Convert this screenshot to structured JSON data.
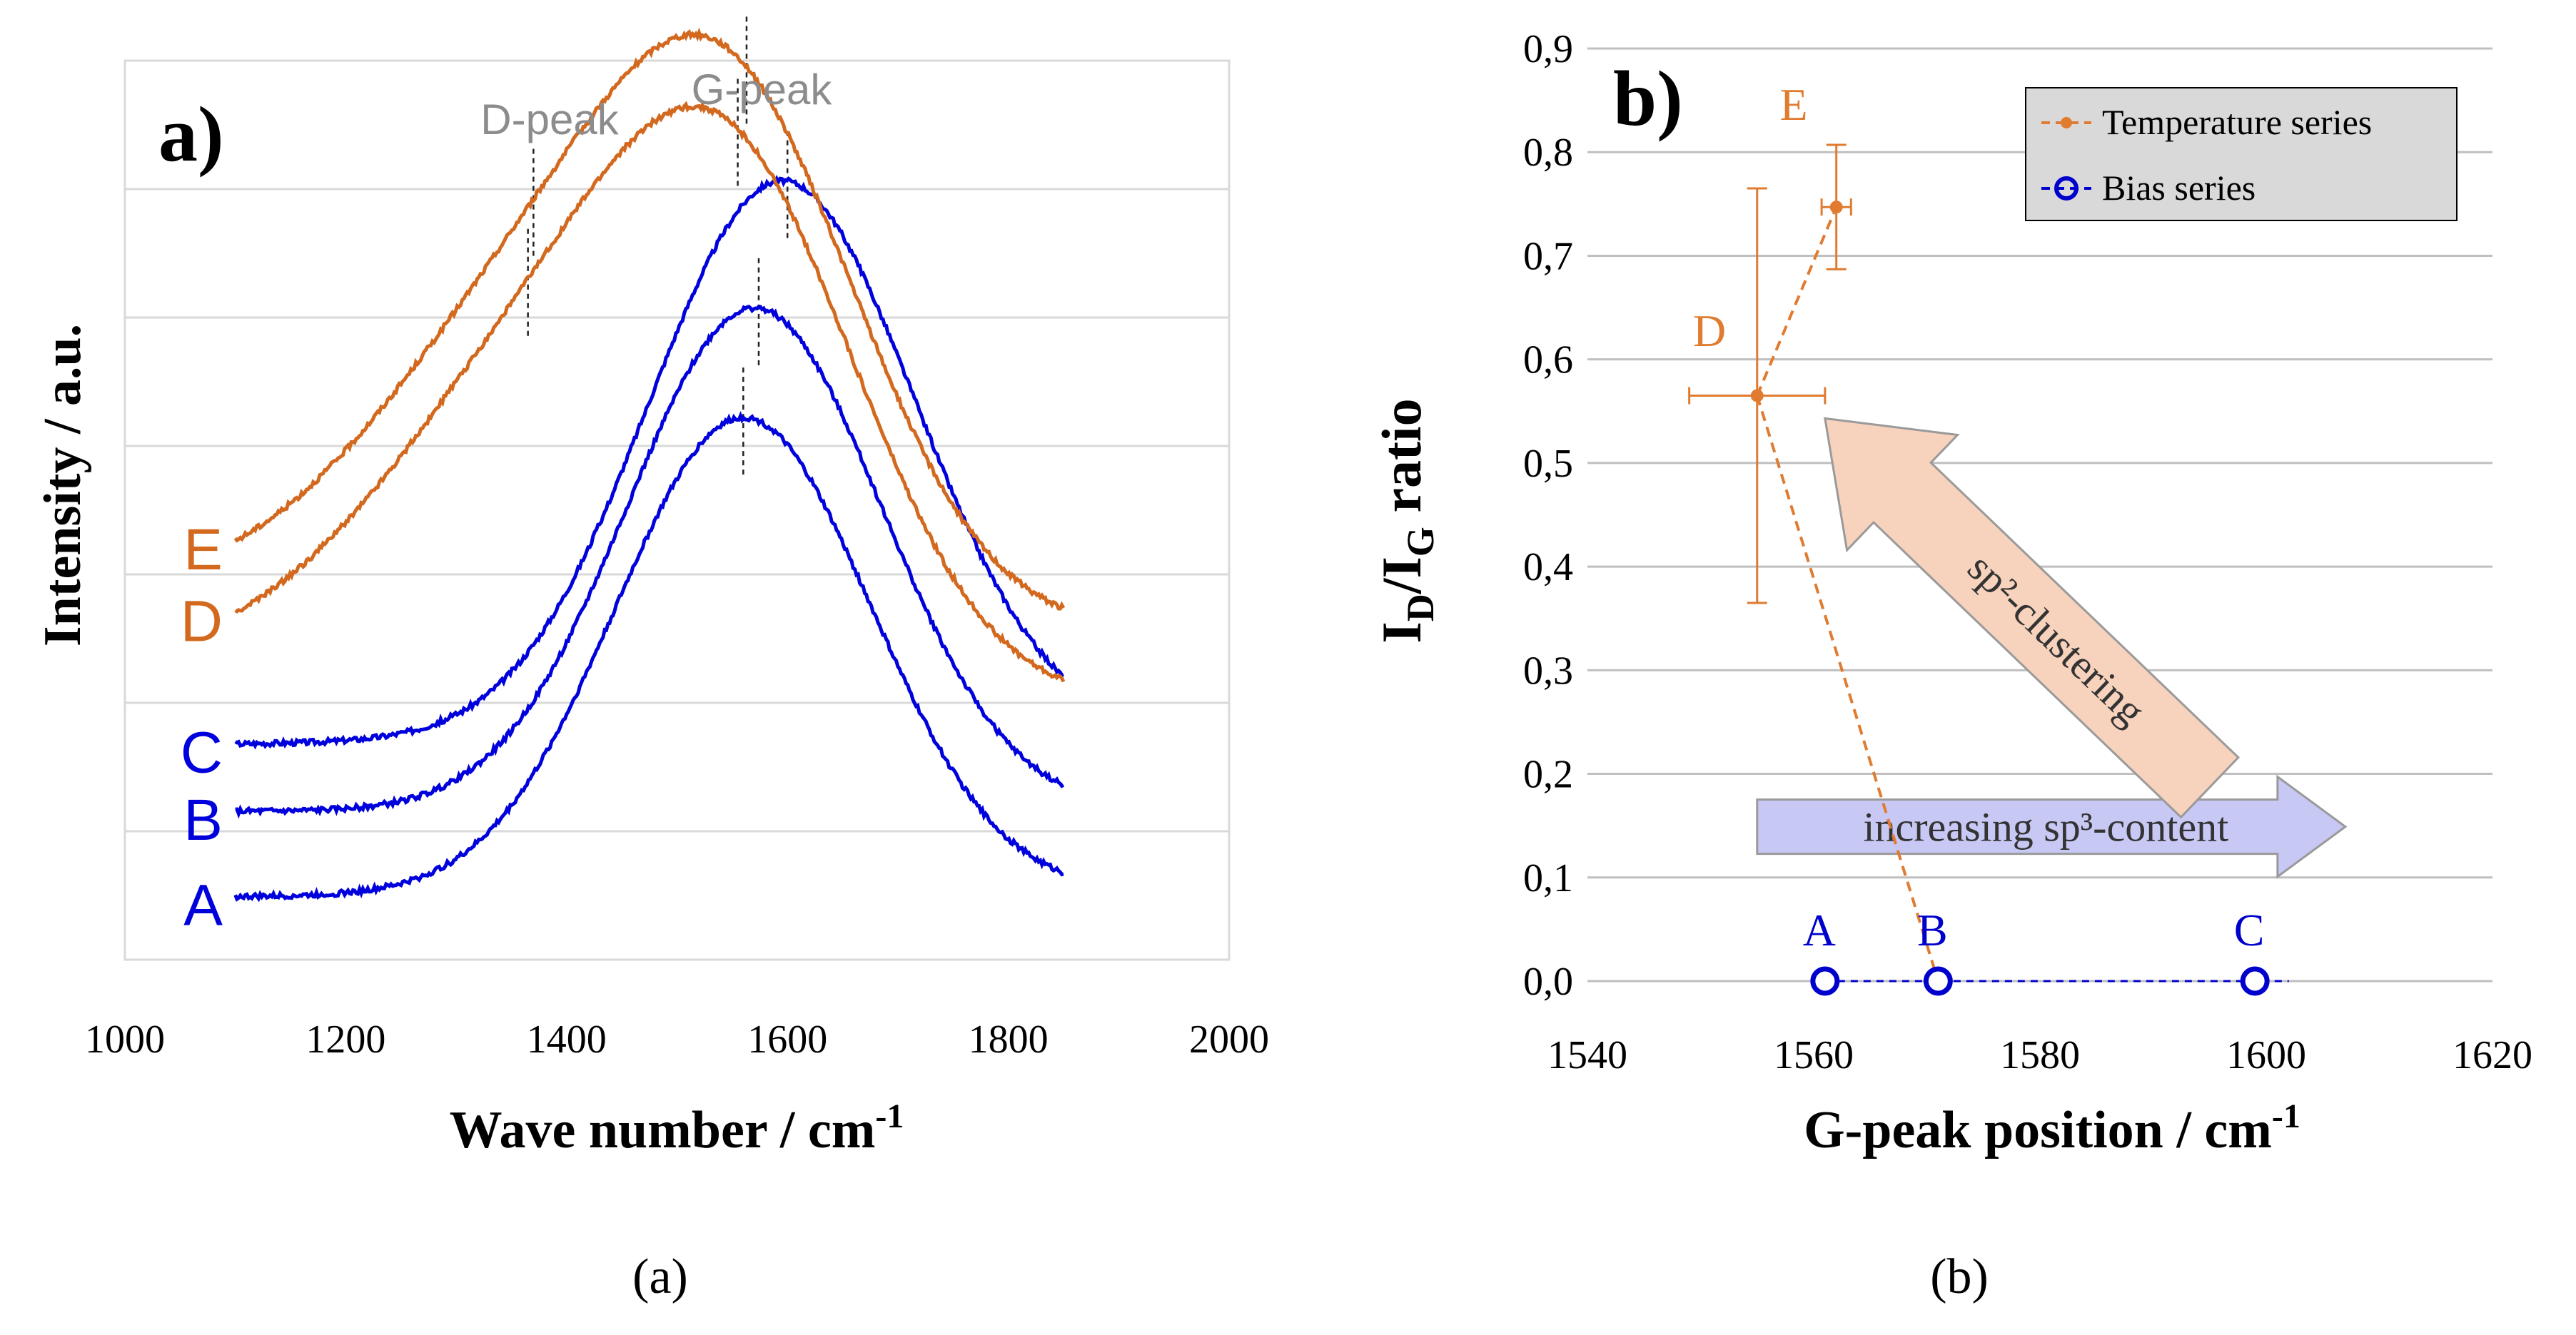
{
  "panel_captions": [
    "(a)",
    "(b)"
  ],
  "chart_data": [
    {
      "type": "line",
      "panel_label": "a)",
      "xlabel": "Wave number / cm",
      "xlabel_sup": "-1",
      "ylabel": "Intensity / a.u.",
      "xlim": [
        1000,
        2000
      ],
      "xticks": [
        "1000",
        "1200",
        "1400",
        "1600",
        "1800",
        "2000"
      ],
      "x_range": [
        1100,
        1850
      ],
      "grid": "horizontal",
      "peak_labels": [
        "D-peak",
        "G-peak"
      ],
      "colors": {
        "temperature": "#D2691E",
        "bias": "#0000DD",
        "peak_label": "#8c8c8c"
      },
      "series": [
        {
          "name": "A",
          "color": "#0000DD",
          "start": 0.07,
          "end": 0.075,
          "peaks": [
            {
              "center": 1560,
              "height": 0.53,
              "width": 115
            }
          ],
          "g_peak": 1560
        },
        {
          "name": "B",
          "color": "#0000DD",
          "start": 0.165,
          "end": 0.165,
          "peaks": [
            {
              "center": 1570,
              "height": 0.56,
              "width": 115
            }
          ],
          "g_peak": 1574
        },
        {
          "name": "C",
          "color": "#0000DD",
          "start": 0.24,
          "end": 0.25,
          "peaks": [
            {
              "center": 1595,
              "height": 0.62,
              "width": 120
            }
          ],
          "g_peak": 1600
        },
        {
          "name": "D",
          "color": "#D2691E",
          "start": 0.33,
          "end": 0.29,
          "peaks": [
            {
              "center": 1385,
              "height": 0.34,
              "width": 150
            },
            {
              "center": 1560,
              "height": 0.44,
              "width": 115
            }
          ],
          "d_peak": 1365,
          "g_peak": 1555
        },
        {
          "name": "E",
          "color": "#D2691E",
          "start": 0.41,
          "end": 0.37,
          "peaks": [
            {
              "center": 1385,
              "height": 0.34,
              "width": 150
            },
            {
              "center": 1560,
              "height": 0.44,
              "width": 115
            }
          ],
          "d_peak": 1370,
          "g_peak": 1563
        }
      ]
    },
    {
      "type": "scatter",
      "panel_label": "b)",
      "xlabel": "G-peak position / cm",
      "xlabel_sup": "-1",
      "ylabel": "I_D/I_G ratio",
      "xlim": [
        1540,
        1620
      ],
      "ylim": [
        0,
        0.9
      ],
      "xticks": [
        "1540",
        "1560",
        "1580",
        "1600",
        "1620"
      ],
      "yticks": [
        "0,0",
        "0,1",
        "0,2",
        "0,3",
        "0,4",
        "0,5",
        "0,6",
        "0,7",
        "0,8",
        "0,9"
      ],
      "grid": "horizontal",
      "legend": {
        "position": "top-right",
        "entries": [
          "Temperature series",
          "Bias series"
        ]
      },
      "series": [
        {
          "name": "Temperature series",
          "color": "#E07B30",
          "points": [
            {
              "label": "D",
              "x": 1555,
              "y": 0.565,
              "xerr": 6,
              "yerr": 0.2
            },
            {
              "label": "E",
              "x": 1562,
              "y": 0.747,
              "xerr": 1.3,
              "yerr": 0.06
            }
          ]
        },
        {
          "name": "Bias series",
          "color": "#0000CC",
          "points": [
            {
              "label": "A",
              "x": 1561,
              "y": 0.0
            },
            {
              "label": "B",
              "x": 1571,
              "y": 0.0
            },
            {
              "label": "C",
              "x": 1599,
              "y": 0.0
            }
          ]
        }
      ],
      "connector": {
        "from": {
          "x": 1555,
          "y": 0.565
        },
        "to": {
          "x": 1571,
          "y": 0.0
        }
      },
      "arrows": [
        {
          "text": "increasing sp³-content",
          "color": "#C8C8F5"
        },
        {
          "text": "sp²-clustering",
          "color": "#F7D2BC"
        }
      ]
    }
  ]
}
